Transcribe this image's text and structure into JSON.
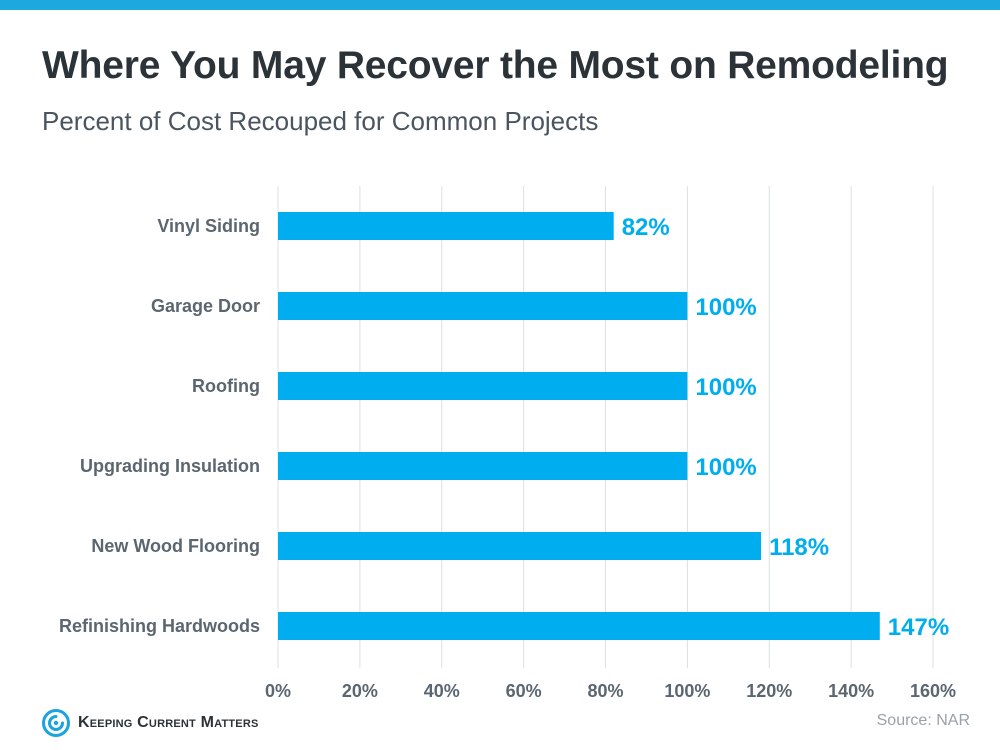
{
  "header": {
    "title": "Where You May Recover the Most on Remodeling",
    "subtitle": "Percent of Cost Recouped for Common Projects"
  },
  "footer": {
    "brand": "Keeping Current Matters",
    "source": "Source: NAR"
  },
  "colors": {
    "bar": "#00adef",
    "label": "#00adef",
    "category_text": "#5b6670",
    "tick_text": "#5b6670",
    "grid": "#dcdfe3",
    "top_bar": "#1ea8e0",
    "logo": "#1aa3dd"
  },
  "icons": {
    "logo": "kcm-spiral-logo-icon"
  },
  "chart_data": {
    "type": "bar",
    "orientation": "horizontal",
    "title": "Where You May Recover the Most on Remodeling",
    "subtitle": "Percent of Cost Recouped for Common Projects",
    "categories": [
      "Vinyl Siding",
      "Garage Door",
      "Roofing",
      "Upgrading Insulation",
      "New Wood Flooring",
      "Refinishing Hardwoods"
    ],
    "values": [
      82,
      100,
      100,
      100,
      118,
      147
    ],
    "value_labels": [
      "82%",
      "100%",
      "100%",
      "100%",
      "118%",
      "147%"
    ],
    "xlim": [
      0,
      160
    ],
    "xticks": [
      0,
      20,
      40,
      60,
      80,
      100,
      120,
      140,
      160
    ],
    "xtick_labels": [
      "0%",
      "20%",
      "40%",
      "60%",
      "80%",
      "100%",
      "120%",
      "140%",
      "160%"
    ],
    "xlabel": "",
    "ylabel": "",
    "grid": "vertical",
    "legend": "none"
  }
}
